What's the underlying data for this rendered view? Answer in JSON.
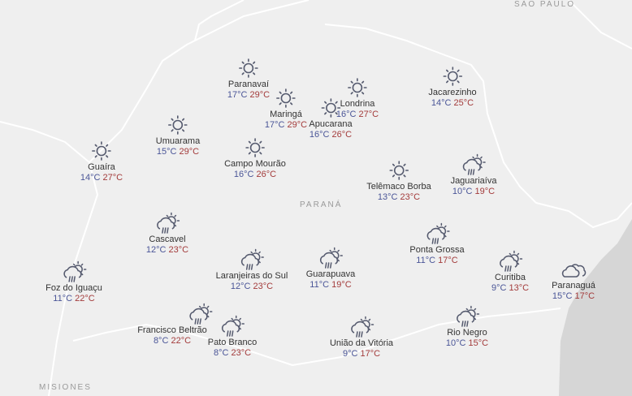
{
  "regions": [
    {
      "label": "SÃO PAULO"
    },
    {
      "label": "PARANÁ"
    },
    {
      "label": "MISIONES"
    }
  ],
  "colors": {
    "min_temp": "#4a5597",
    "max_temp": "#a33b3b",
    "land": "#efefef",
    "ocean": "#d6d6d6",
    "border": "#ffffff"
  },
  "cities": [
    {
      "name": "Paranavaí",
      "min": "17°C",
      "max": "29°C",
      "icon": "sun-icon"
    },
    {
      "name": "Maringá",
      "min": "17°C",
      "max": "29°C",
      "icon": "sun-icon"
    },
    {
      "name": "Londrina",
      "min": "16°C",
      "max": "27°C",
      "icon": "sun-icon"
    },
    {
      "name": "Apucarana",
      "min": "16°C",
      "max": "26°C",
      "icon": "sun-icon"
    },
    {
      "name": "Jacarezinho",
      "min": "14°C",
      "max": "25°C",
      "icon": "sun-icon"
    },
    {
      "name": "Umuarama",
      "min": "15°C",
      "max": "29°C",
      "icon": "sun-icon"
    },
    {
      "name": "Guaíra",
      "min": "14°C",
      "max": "27°C",
      "icon": "sun-icon"
    },
    {
      "name": "Campo Mourão",
      "min": "16°C",
      "max": "26°C",
      "icon": "sun-icon"
    },
    {
      "name": "Telêmaco Borba",
      "min": "13°C",
      "max": "23°C",
      "icon": "sun-icon"
    },
    {
      "name": "Jaguariaíva",
      "min": "10°C",
      "max": "19°C",
      "icon": "sun-rain-icon"
    },
    {
      "name": "Cascavel",
      "min": "12°C",
      "max": "23°C",
      "icon": "sun-rain-icon"
    },
    {
      "name": "Laranjeiras do Sul",
      "min": "12°C",
      "max": "23°C",
      "icon": "sun-rain-icon"
    },
    {
      "name": "Guarapuava",
      "min": "11°C",
      "max": "19°C",
      "icon": "sun-rain-icon"
    },
    {
      "name": "Ponta Grossa",
      "min": "11°C",
      "max": "17°C",
      "icon": "sun-rain-icon"
    },
    {
      "name": "Curitiba",
      "min": "9°C",
      "max": "13°C",
      "icon": "sun-rain-icon"
    },
    {
      "name": "Paranaguá",
      "min": "15°C",
      "max": "17°C",
      "icon": "cloud-icon"
    },
    {
      "name": "Foz do Iguaçu",
      "min": "11°C",
      "max": "22°C",
      "icon": "sun-rain-icon"
    },
    {
      "name": "Francisco Beltrão",
      "min": "8°C",
      "max": "22°C",
      "icon": "sun-rain-icon"
    },
    {
      "name": "Pato Branco",
      "min": "8°C",
      "max": "23°C",
      "icon": "sun-rain-icon"
    },
    {
      "name": "União da Vitória",
      "min": "9°C",
      "max": "17°C",
      "icon": "sun-rain-icon"
    },
    {
      "name": "Rio Negro",
      "min": "10°C",
      "max": "15°C",
      "icon": "sun-rain-icon"
    }
  ]
}
